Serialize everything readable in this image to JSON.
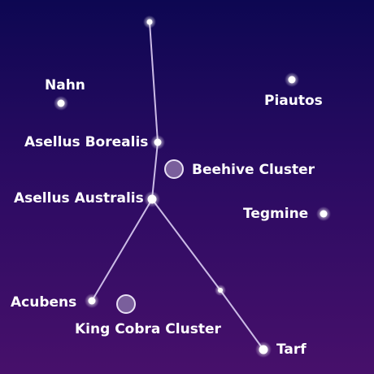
{
  "diagram": {
    "lines": [
      "#d6c8ec",
      "#b7a4d6"
    ],
    "stars": [
      {
        "name": "Nahn",
        "kind": "star"
      },
      {
        "name": "Piautos",
        "kind": "star"
      },
      {
        "name": "Asellus Borealis",
        "kind": "star"
      },
      {
        "name": "Beehive Cluster",
        "kind": "cluster"
      },
      {
        "name": "Asellus Australis",
        "kind": "star"
      },
      {
        "name": "Tegmine",
        "kind": "star"
      },
      {
        "name": "Acubens",
        "kind": "star"
      },
      {
        "name": "King Cobra Cluster",
        "kind": "cluster"
      },
      {
        "name": "Tarf",
        "kind": "star"
      }
    ]
  },
  "colors": {
    "star": "#ffffff",
    "cluster_fill": "#7a5f9c",
    "cluster_stroke": "#e8e0f4"
  }
}
